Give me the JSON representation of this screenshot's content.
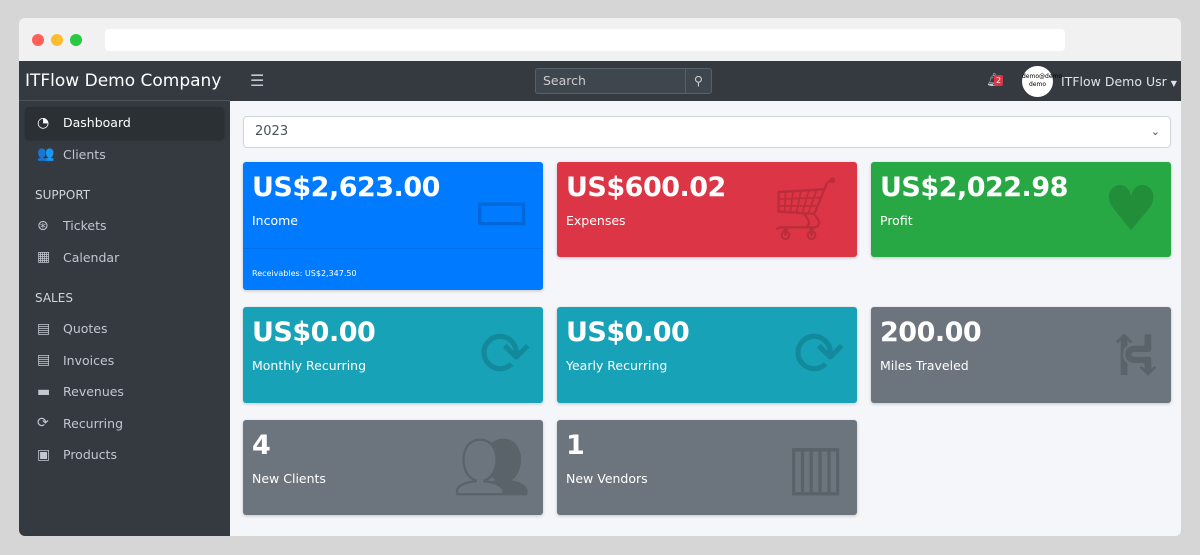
{
  "sidebar": {
    "brand": "ITFlow Demo Company",
    "items": [
      {
        "label": "Dashboard",
        "icon": "dashboard-icon"
      },
      {
        "label": "Clients",
        "icon": "users-icon"
      }
    ],
    "support_header": "SUPPORT",
    "support": [
      {
        "label": "Tickets",
        "icon": "life-ring-icon"
      },
      {
        "label": "Calendar",
        "icon": "calendar-icon"
      }
    ],
    "sales_header": "SALES",
    "sales": [
      {
        "label": "Quotes",
        "icon": "file-icon"
      },
      {
        "label": "Invoices",
        "icon": "invoice-icon"
      },
      {
        "label": "Revenues",
        "icon": "credit-card-icon"
      },
      {
        "label": "Recurring",
        "icon": "sync-icon"
      },
      {
        "label": "Products",
        "icon": "box-icon"
      }
    ]
  },
  "topbar": {
    "search_placeholder": "Search",
    "notifications": "2",
    "avatar_text": "demo@demo demo",
    "user": "ITFlow Demo Usr"
  },
  "year": "2023",
  "cards": [
    {
      "value": "US$2,623.00",
      "label": "Income",
      "footer": "Receivables: US$2,347.50",
      "color": "#007bff"
    },
    {
      "value": "US$600.02",
      "label": "Expenses",
      "color": "#dc3545"
    },
    {
      "value": "US$2,022.98",
      "label": "Profit",
      "color": "#28a745"
    },
    {
      "value": "US$0.00",
      "label": "Monthly Recurring",
      "color": "#17a2b8"
    },
    {
      "value": "US$0.00",
      "label": "Yearly Recurring",
      "color": "#17a2b8"
    },
    {
      "value": "200.00",
      "label": "Miles Traveled",
      "color": "#6c757d"
    },
    {
      "value": "4",
      "label": "New Clients",
      "color": "#6c757d"
    },
    {
      "value": "1",
      "label": "New Vendors",
      "color": "#6c757d"
    }
  ]
}
